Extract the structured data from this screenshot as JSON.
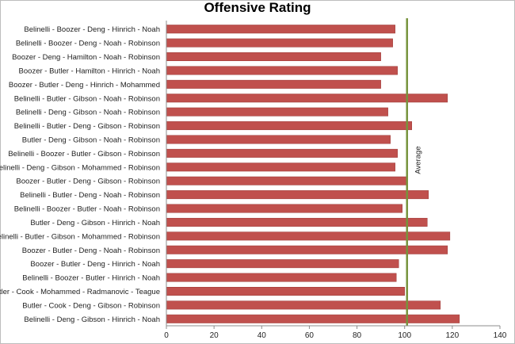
{
  "chart_data": {
    "type": "bar",
    "orientation": "horizontal",
    "title": "Offensive Rating",
    "categories": [
      "Belinelli - Boozer - Deng - Hinrich - Noah",
      "Belinelli - Boozer - Deng - Noah - Robinson",
      "Boozer - Deng - Hamilton - Noah - Robinson",
      "Boozer - Butler - Hamilton - Hinrich - Noah",
      "Boozer - Butler - Deng - Hinrich - Mohammed",
      "Belinelli - Butler - Gibson - Noah - Robinson",
      "Belinelli - Deng - Gibson - Noah - Robinson",
      "Belinelli - Butler - Deng - Gibson - Robinson",
      "Butler - Deng - Gibson - Noah - Robinson",
      "Belinelli - Boozer - Butler - Gibson - Robinson",
      "Belinelli - Deng - Gibson - Mohammed - Robinson",
      "Boozer - Butler - Deng - Gibson - Robinson",
      "Belinelli - Butler - Deng - Noah - Robinson",
      "Belinelli - Boozer - Butler - Noah - Robinson",
      "Butler - Deng - Gibson - Hinrich - Noah",
      "Belinelli - Butler - Gibson - Mohammed - Robinson",
      "Boozer - Butler - Deng - Noah - Robinson",
      "Boozer - Butler - Deng - Hinrich - Noah",
      "Belinelli - Boozer - Butler - Hinrich - Noah",
      "Butler - Cook - Mohammed - Radmanovic - Teague",
      "Butler - Cook - Deng - Gibson - Robinson",
      "Belinelli - Deng - Gibson - Hinrich - Noah"
    ],
    "values": [
      96,
      95,
      90,
      97,
      90,
      118,
      93,
      103,
      94,
      97,
      96,
      101,
      110,
      99,
      109.5,
      119,
      118,
      97.5,
      96.5,
      100,
      115,
      123
    ],
    "xlim": [
      0,
      140
    ],
    "xticks": [
      "0",
      "20",
      "40",
      "60",
      "80",
      "100",
      "120",
      "140"
    ],
    "reference_line": {
      "label": "Average",
      "value": 101
    },
    "bar_color": "#c0504d",
    "reference_color": "#77933c",
    "legend": "none",
    "grid": false
  }
}
